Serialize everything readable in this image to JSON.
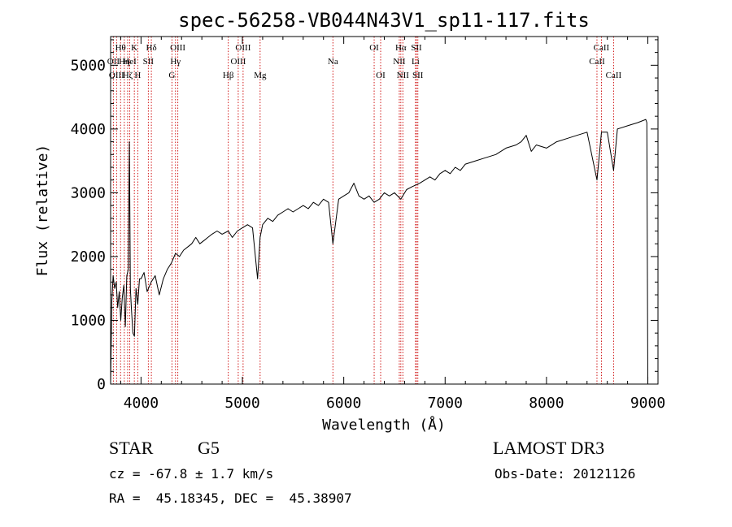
{
  "chart_data": {
    "type": "line",
    "title": "spec-56258-VB044N43V1_sp11-117.fits",
    "xlabel": "Wavelength (Å)",
    "ylabel": "Flux (relative)",
    "xlim": [
      3700,
      9100
    ],
    "ylim": [
      0,
      5450
    ],
    "xticks": [
      4000,
      5000,
      6000,
      7000,
      8000,
      9000
    ],
    "yticks": [
      0,
      1000,
      2000,
      3000,
      4000,
      5000
    ],
    "grid": false,
    "series": [
      {
        "name": "flux",
        "x": [
          3700,
          3712,
          3725,
          3740,
          3755,
          3770,
          3785,
          3800,
          3815,
          3830,
          3845,
          3860,
          3875,
          3885,
          3895,
          3905,
          3920,
          3935,
          3950,
          3968,
          3985,
          4000,
          4030,
          4060,
          4100,
          4140,
          4180,
          4220,
          4260,
          4300,
          4340,
          4380,
          4420,
          4460,
          4500,
          4540,
          4580,
          4620,
          4660,
          4700,
          4750,
          4800,
          4861,
          4900,
          4950,
          5000,
          5050,
          5100,
          5150,
          5175,
          5200,
          5250,
          5300,
          5350,
          5400,
          5450,
          5500,
          5550,
          5600,
          5650,
          5700,
          5750,
          5800,
          5850,
          5893,
          5950,
          6000,
          6050,
          6100,
          6150,
          6200,
          6250,
          6300,
          6350,
          6400,
          6450,
          6500,
          6563,
          6620,
          6680,
          6750,
          6800,
          6850,
          6900,
          6950,
          7000,
          7050,
          7100,
          7150,
          7200,
          7300,
          7400,
          7500,
          7600,
          7700,
          7750,
          7800,
          7850,
          7900,
          8000,
          8100,
          8200,
          8300,
          8400,
          8498,
          8542,
          8600,
          8662,
          8700,
          8800,
          8900,
          8980,
          8990,
          9000
        ],
        "values": [
          0,
          1300,
          1700,
          1500,
          1600,
          1200,
          1450,
          1000,
          1350,
          1550,
          900,
          1700,
          1800,
          3800,
          1500,
          1200,
          800,
          750,
          1500,
          1250,
          1650,
          1650,
          1750,
          1450,
          1600,
          1700,
          1400,
          1650,
          1800,
          1900,
          2050,
          2000,
          2100,
          2150,
          2200,
          2300,
          2200,
          2250,
          2300,
          2350,
          2400,
          2350,
          2400,
          2300,
          2400,
          2450,
          2500,
          2450,
          1650,
          2300,
          2500,
          2600,
          2550,
          2650,
          2700,
          2750,
          2700,
          2750,
          2800,
          2750,
          2850,
          2800,
          2900,
          2850,
          2200,
          2900,
          2950,
          3000,
          3150,
          2950,
          2900,
          2950,
          2850,
          2900,
          3000,
          2950,
          3000,
          2900,
          3050,
          3100,
          3150,
          3200,
          3250,
          3200,
          3300,
          3350,
          3300,
          3400,
          3350,
          3450,
          3500,
          3550,
          3600,
          3700,
          3750,
          3800,
          3900,
          3650,
          3750,
          3700,
          3800,
          3850,
          3900,
          3950,
          3200,
          3950,
          3950,
          3350,
          4000,
          4050,
          4100,
          4150,
          4100,
          0
        ]
      }
    ],
    "spectral_lines": [
      {
        "label": "Hθ",
        "x": 3798,
        "row": 1
      },
      {
        "label": "K",
        "x": 3934,
        "row": 1
      },
      {
        "label": "Hδ",
        "x": 4102,
        "row": 1
      },
      {
        "label": "OIII",
        "x": 4363,
        "row": 1
      },
      {
        "label": "OIII",
        "x": 5007,
        "row": 1
      },
      {
        "label": "OI",
        "x": 6300,
        "row": 1
      },
      {
        "label": "Hα",
        "x": 6563,
        "row": 1
      },
      {
        "label": "SII",
        "x": 6717,
        "row": 1
      },
      {
        "label": "CaII",
        "x": 8542,
        "row": 1
      },
      {
        "label": "OII",
        "x": 3727,
        "row": 2
      },
      {
        "label": "Hη",
        "x": 3835,
        "row": 2
      },
      {
        "label": "HeI",
        "x": 3889,
        "row": 2
      },
      {
        "label": "SII",
        "x": 4072,
        "row": 2
      },
      {
        "label": "Hγ",
        "x": 4340,
        "row": 2
      },
      {
        "label": "OIII",
        "x": 4959,
        "row": 2
      },
      {
        "label": "Na",
        "x": 5893,
        "row": 2
      },
      {
        "label": "NII",
        "x": 6548,
        "row": 2
      },
      {
        "label": "Li",
        "x": 6708,
        "row": 2
      },
      {
        "label": "CaII",
        "x": 8498,
        "row": 2
      },
      {
        "label": "OIII",
        "x": 3759,
        "row": 3
      },
      {
        "label": "Hζ",
        "x": 3868,
        "row": 3
      },
      {
        "label": "H",
        "x": 3968,
        "row": 3
      },
      {
        "label": "G",
        "x": 4305,
        "row": 3
      },
      {
        "label": "Hβ",
        "x": 4861,
        "row": 3
      },
      {
        "label": "Mg",
        "x": 5175,
        "row": 3
      },
      {
        "label": "OI",
        "x": 6364,
        "row": 3
      },
      {
        "label": "NII",
        "x": 6583,
        "row": 3
      },
      {
        "label": "SII",
        "x": 6731,
        "row": 3
      },
      {
        "label": "CaII",
        "x": 8662,
        "row": 3
      }
    ]
  },
  "info": {
    "object_class": "STAR",
    "subclass": "G5",
    "survey": "LAMOST DR3",
    "cz": "cz = -67.8 ± 1.7 km/s",
    "obs_date": "Obs-Date: 20121126",
    "coords": "RA =  45.18345, DEC =  45.38907"
  },
  "colors": {
    "line": "#000000",
    "marker": "#cc0000",
    "axis": "#000000"
  }
}
